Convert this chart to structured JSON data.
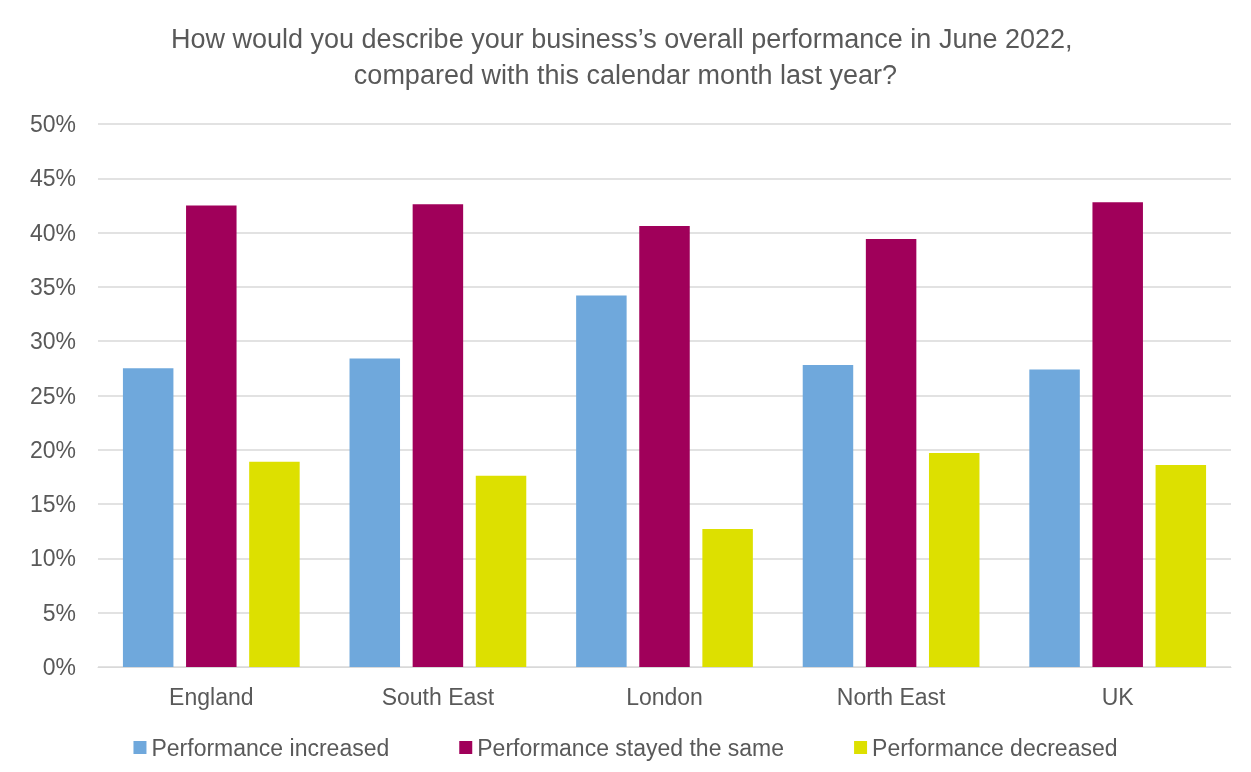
{
  "chart_data": {
    "type": "bar",
    "title": "How would you describe your business’s overall performance in June 2022, compared with this calendar month last year?",
    "categories": [
      "England",
      "South East",
      "London",
      "North East",
      "UK"
    ],
    "series": [
      {
        "name": "Performance increased",
        "color": "#6fa8dc",
        "values": [
          27.5,
          28.4,
          34.2,
          27.8,
          27.4
        ]
      },
      {
        "name": "Performance stayed the same",
        "color": "#a0005a",
        "values": [
          42.5,
          42.6,
          40.6,
          39.4,
          42.8
        ]
      },
      {
        "name": "Performance decreased",
        "color": "#dde000",
        "values": [
          18.9,
          17.6,
          12.7,
          19.7,
          18.6
        ]
      }
    ],
    "ylim": [
      0,
      50
    ],
    "yticks": [
      {
        "value": 0,
        "label": "0%"
      },
      {
        "value": 5,
        "label": "5%"
      },
      {
        "value": 10,
        "label": "10%"
      },
      {
        "value": 15,
        "label": "15%"
      },
      {
        "value": 20,
        "label": "20%"
      },
      {
        "value": 25,
        "label": "25%"
      },
      {
        "value": 30,
        "label": "30%"
      },
      {
        "value": 35,
        "label": "35%"
      },
      {
        "value": 40,
        "label": "40%"
      },
      {
        "value": 45,
        "label": "45%"
      },
      {
        "value": 50,
        "label": "50%"
      }
    ],
    "grid": "y",
    "legend": "bottom"
  }
}
